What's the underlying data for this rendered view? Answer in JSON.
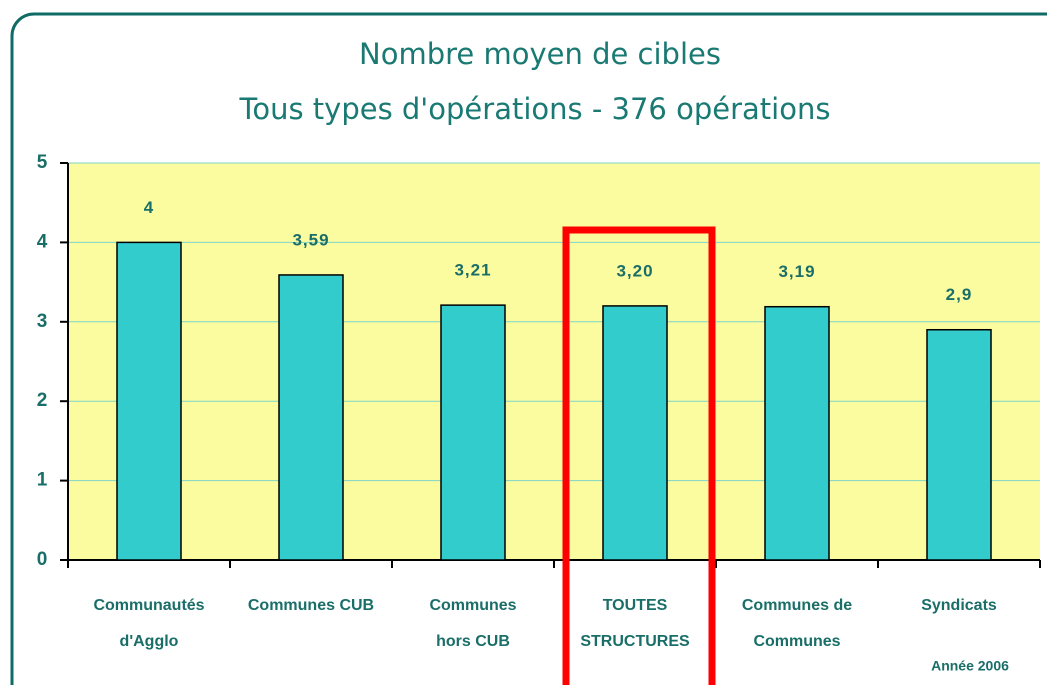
{
  "chart_data": {
    "type": "bar",
    "title": "Nombre moyen de cibles",
    "subtitle": "Tous types d'opérations - 376 opérations",
    "categories": [
      "Communautés\nd'Agglo",
      "Communes CUB",
      "Communes\nhors CUB",
      "TOUTES\nSTRUCTURES",
      "Communes de\nCommunes",
      "Syndicats"
    ],
    "values": [
      4,
      3.59,
      3.21,
      3.2,
      3.19,
      2.9
    ],
    "value_labels": [
      "4",
      "3,59",
      "3,21",
      "3,20",
      "3,19",
      "2,9"
    ],
    "color": "#33cccc",
    "ylim": [
      0,
      5
    ],
    "yticks": [
      0,
      1,
      2,
      3,
      4,
      5
    ],
    "grid": true,
    "annotation": "Année 2006"
  }
}
